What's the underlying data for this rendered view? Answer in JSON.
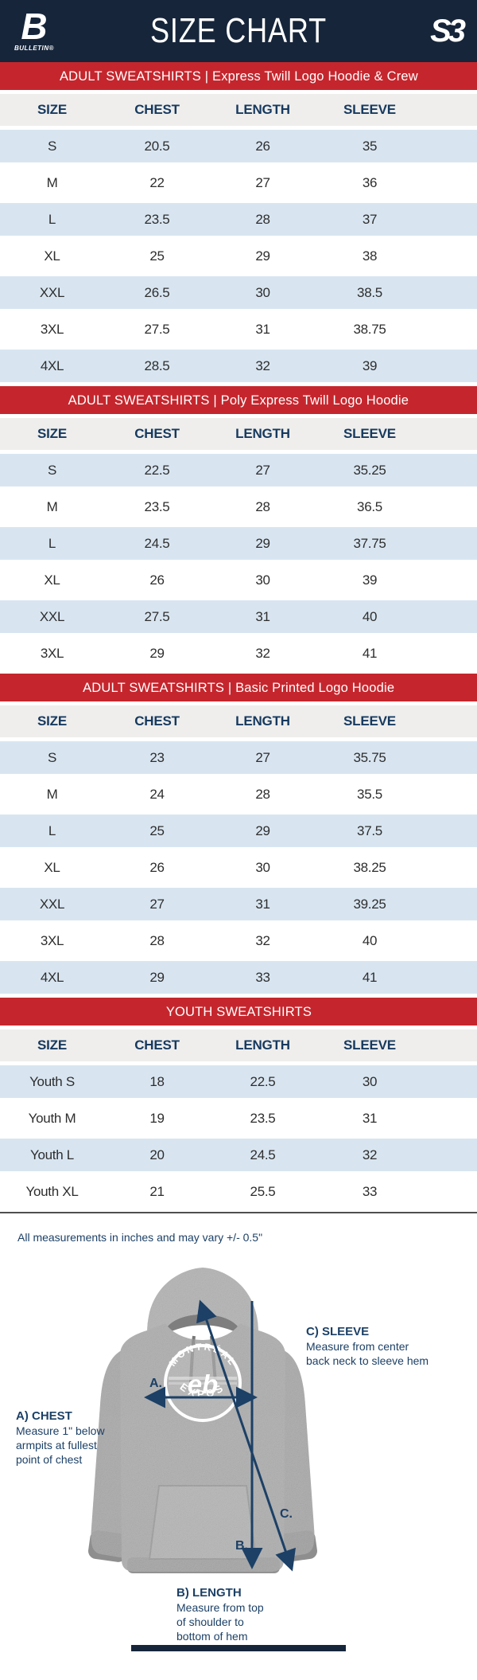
{
  "header": {
    "title": "SIZE CHART",
    "left_logo": {
      "glyph": "B",
      "caption": "BULLETIN®"
    },
    "right_logo": {
      "glyph": "S3"
    }
  },
  "columns": [
    "SIZE",
    "CHEST",
    "LENGTH",
    "SLEEVE"
  ],
  "sections": [
    {
      "banner": "ADULT SWEATSHIRTS | Express Twill Logo Hoodie & Crew",
      "rows": [
        [
          "S",
          "20.5",
          "26",
          "35"
        ],
        [
          "M",
          "22",
          "27",
          "36"
        ],
        [
          "L",
          "23.5",
          "28",
          "37"
        ],
        [
          "XL",
          "25",
          "29",
          "38"
        ],
        [
          "XXL",
          "26.5",
          "30",
          "38.5"
        ],
        [
          "3XL",
          "27.5",
          "31",
          "38.75"
        ],
        [
          "4XL",
          "28.5",
          "32",
          "39"
        ]
      ]
    },
    {
      "banner": "ADULT SWEATSHIRTS | Poly Express Twill Logo Hoodie",
      "rows": [
        [
          "S",
          "22.5",
          "27",
          "35.25"
        ],
        [
          "M",
          "23.5",
          "28",
          "36.5"
        ],
        [
          "L",
          "24.5",
          "29",
          "37.75"
        ],
        [
          "XL",
          "26",
          "30",
          "39"
        ],
        [
          "XXL",
          "27.5",
          "31",
          "40"
        ],
        [
          "3XL",
          "29",
          "32",
          "41"
        ]
      ]
    },
    {
      "banner": "ADULT SWEATSHIRTS | Basic Printed Logo Hoodie",
      "rows": [
        [
          "S",
          "23",
          "27",
          "35.75"
        ],
        [
          "M",
          "24",
          "28",
          "35.5"
        ],
        [
          "L",
          "25",
          "29",
          "37.5"
        ],
        [
          "XL",
          "26",
          "30",
          "38.25"
        ],
        [
          "XXL",
          "27",
          "31",
          "39.25"
        ],
        [
          "3XL",
          "28",
          "32",
          "40"
        ],
        [
          "4XL",
          "29",
          "33",
          "41"
        ]
      ]
    },
    {
      "banner": "YOUTH SWEATSHIRTS",
      "rows": [
        [
          "Youth S",
          "18",
          "22.5",
          "30"
        ],
        [
          "Youth M",
          "19",
          "23.5",
          "31"
        ],
        [
          "Youth L",
          "20",
          "24.5",
          "32"
        ],
        [
          "Youth XL",
          "21",
          "25.5",
          "33"
        ]
      ]
    }
  ],
  "note": "All measurements in inches and may vary +/- 0.5\"",
  "diagram": {
    "chest_label": "A) CHEST",
    "chest_desc": [
      "Measure 1\" below",
      "armpits at fullest",
      "point of chest"
    ],
    "sleeve_label": "C) SLEEVE",
    "sleeve_desc": [
      "Measure from center",
      "back neck to sleeve hem"
    ],
    "length_label": "B) LENGTH",
    "length_desc": [
      "Measure from top",
      "of shoulder to",
      "bottom of hem"
    ],
    "marker_a": "A.",
    "marker_b": "B.",
    "marker_c": "C.",
    "logo_top": "MONTRÉAL",
    "logo_bottom": "EXPOS",
    "logo_mark": "eb"
  },
  "colors": {
    "navy": "#16253a",
    "red": "#c5262d",
    "row_blue": "#d8e5f1",
    "header_gray": "#efeeec",
    "header_text_navy": "#16395f",
    "cell_text": "#2e2e2e",
    "annotation_navy": "#1c4066",
    "hoodie_gray": "#9c9c9c"
  }
}
